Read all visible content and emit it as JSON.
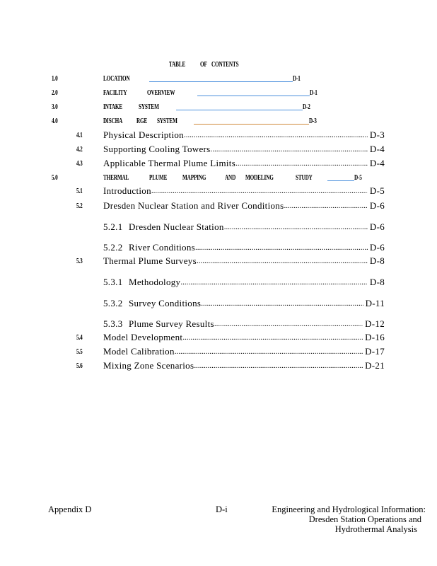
{
  "title_words": [
    "TABLE",
    "OF",
    "CONTENTS"
  ],
  "colors": {
    "leader_blue": "#4a8fdc",
    "leader_orange": "#d08a3a"
  },
  "major": [
    {
      "num": "1.0",
      "words": [
        "LOCATION"
      ],
      "page": "D-1"
    },
    {
      "num": "2.0",
      "words": [
        "FACILITY",
        "OVERVIEW"
      ],
      "page": "D-1"
    },
    {
      "num": "3.0",
      "words": [
        "INTAKE",
        "SYSTEM"
      ],
      "page": "D-2"
    },
    {
      "num": "4.0",
      "words": [
        "DISCHA",
        "RGE",
        "SYSTEM"
      ],
      "page": "D-3"
    },
    {
      "num": "5.0",
      "words": [
        "THERMAL",
        "PLUME",
        "MAPPING",
        "AND",
        "MODELING",
        "STUDY"
      ],
      "page": "D-5"
    }
  ],
  "sub": [
    {
      "num": "4.1",
      "label": "Physical Description",
      "page": "D-3"
    },
    {
      "num": "4.2",
      "label": "Supporting Cooling Towers",
      "page": "D-4"
    },
    {
      "num": "4.3",
      "label": "Applicable Thermal Plume Limits",
      "page": "D-4"
    },
    {
      "num": "5.1",
      "label": "Introduction",
      "page": "D-5"
    },
    {
      "num": "5.2",
      "label": "Dresden Nuclear Station and River Conditions",
      "page": "D-6"
    },
    {
      "num": "5.2.1",
      "label": "Dresden Nuclear Station",
      "page": "D-6"
    },
    {
      "num": "5.2.2",
      "label": "River Conditions",
      "page": "D-6"
    },
    {
      "num": "5.3",
      "label": "Thermal Plume Surveys",
      "page": "D-8"
    },
    {
      "num": "5.3.1",
      "label": "Methodology",
      "page": "D-8"
    },
    {
      "num": "5.3.2",
      "label": "Survey Conditions",
      "page": "D-11"
    },
    {
      "num": "5.3.3",
      "label": "Plume Survey Results",
      "page": "D-12"
    },
    {
      "num": "5.4",
      "label": "Model Development",
      "page": "D-16"
    },
    {
      "num": "5.5",
      "label": "Model Calibration",
      "page": "D-17"
    },
    {
      "num": "5.6",
      "label": "Mixing Zone Scenarios",
      "page": "D-21"
    }
  ],
  "footer": {
    "left": "Appendix D",
    "center": "D-i",
    "right_lines": [
      "Engineering and Hydrological Information:",
      "Dresden Station Operations and",
      "Hydrothermal Analysis"
    ]
  }
}
